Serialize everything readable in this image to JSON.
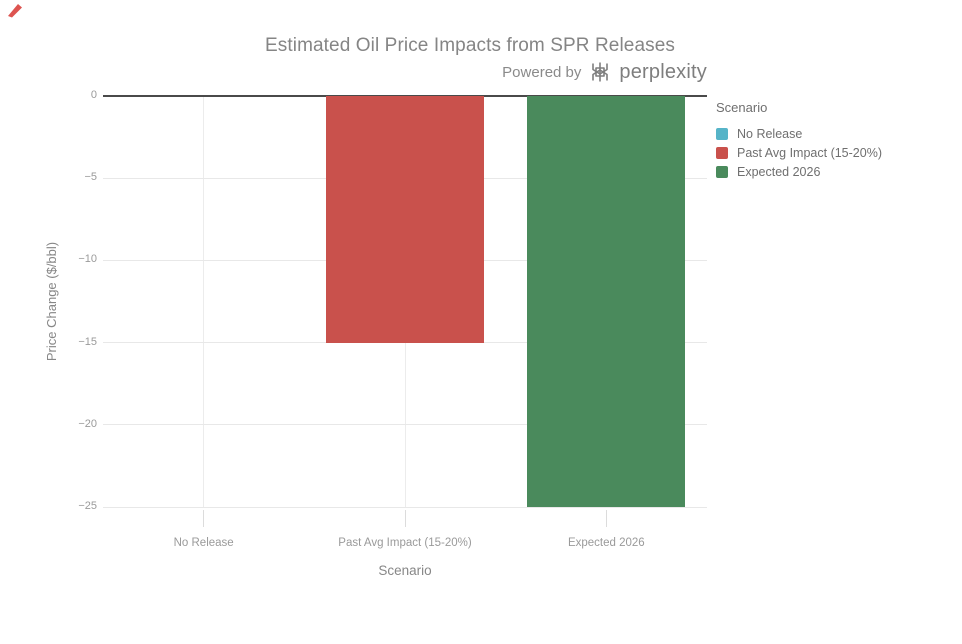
{
  "branding": {
    "powered_by": "Powered by",
    "brand": "perplexity",
    "logo_icon": "perplexity-logo-icon",
    "logo_color": "#7e7e7e"
  },
  "annotation": {
    "marker_icon": "red-pen-marker-icon",
    "marker_color": "#dd5450"
  },
  "chart_data": {
    "type": "bar",
    "title": "Estimated Oil Price Impacts from SPR Releases",
    "xlabel": "Scenario",
    "ylabel": "Price Change ($/bbl)",
    "categories": [
      "No Release",
      "Past Avg Impact (15-20%)",
      "Expected 2026"
    ],
    "values": [
      0,
      -15,
      -25
    ],
    "bar_colors": [
      "#56b4c8",
      "#c9514c",
      "#4a8a5c"
    ],
    "ylim": [
      -25,
      0
    ],
    "yticks": [
      0,
      -5,
      -10,
      -15,
      -20,
      -25
    ],
    "grid": true,
    "legend_position": "right"
  },
  "legend": {
    "title": "Scenario",
    "items": [
      {
        "label": "No Release",
        "color": "#56b4c8"
      },
      {
        "label": "Past Avg Impact (15-20%)",
        "color": "#c9514c"
      },
      {
        "label": "Expected 2026",
        "color": "#4a8a5c"
      }
    ]
  },
  "palette": {
    "zero_line": "#4a4a4a",
    "gridline": "#e8e8e8",
    "vertical_gridline": "#ececec",
    "tick": "#dcdcdc",
    "title_text": "#858585",
    "axis_text": "#9a9a9a",
    "legend_text": "#6f6f6f"
  }
}
